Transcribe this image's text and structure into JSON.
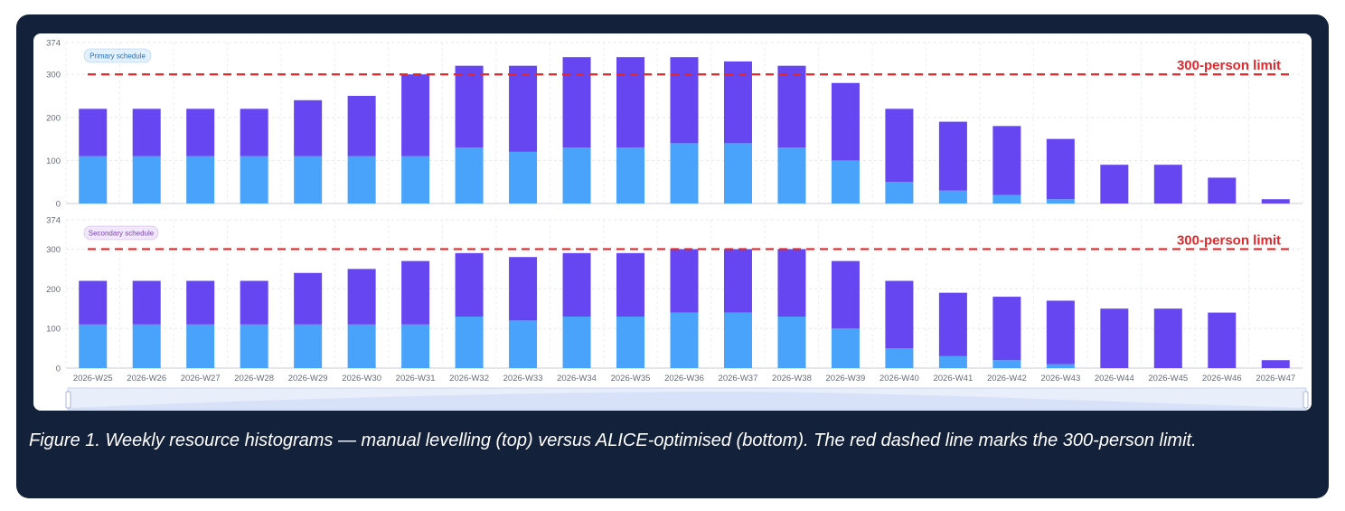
{
  "caption": "Figure 1. Weekly resource histograms — manual levelling (top) versus ALICE-optimised (bottom). The red dashed line marks the 300-person limit.",
  "colors": {
    "card_bg": "#13213a",
    "lower_segment": "#4aa3fa",
    "upper_segment": "#6546f0",
    "limit_line": "#e0292d",
    "primary_badge_bg": "#e3f1fd",
    "primary_badge_text": "#2a6fb8",
    "secondary_badge_bg": "#f1e8fb",
    "secondary_badge_text": "#7a45b5"
  },
  "chart_data": [
    {
      "type": "bar",
      "stacked": true,
      "badge": "Primary schedule",
      "categories": [
        "2026-W25",
        "2026-W26",
        "2026-W27",
        "2026-W28",
        "2026-W29",
        "2026-W30",
        "2026-W31",
        "2026-W32",
        "2026-W33",
        "2026-W34",
        "2026-W35",
        "2026-W36",
        "2026-W37",
        "2026-W38",
        "2026-W39",
        "2026-W40",
        "2026-W41",
        "2026-W42",
        "2026-W43",
        "2026-W44",
        "2026-W45",
        "2026-W46",
        "2026-W47"
      ],
      "series": [
        {
          "values": [
            110,
            110,
            110,
            110,
            110,
            110,
            110,
            130,
            120,
            130,
            130,
            140,
            140,
            130,
            100,
            50,
            30,
            20,
            10,
            0,
            0,
            0,
            0
          ]
        },
        {
          "values": [
            110,
            110,
            110,
            110,
            130,
            140,
            190,
            190,
            200,
            210,
            210,
            200,
            190,
            190,
            180,
            170,
            160,
            160,
            140,
            90,
            90,
            60,
            10
          ]
        }
      ],
      "ylim": [
        0,
        374
      ],
      "yticks": [
        0,
        100,
        200,
        300,
        374
      ],
      "grid": true,
      "reference_line": {
        "value": 300,
        "label": "300-person limit"
      }
    },
    {
      "type": "bar",
      "stacked": true,
      "badge": "Secondary schedule",
      "categories": [
        "2026-W25",
        "2026-W26",
        "2026-W27",
        "2026-W28",
        "2026-W29",
        "2026-W30",
        "2026-W31",
        "2026-W32",
        "2026-W33",
        "2026-W34",
        "2026-W35",
        "2026-W36",
        "2026-W37",
        "2026-W38",
        "2026-W39",
        "2026-W40",
        "2026-W41",
        "2026-W42",
        "2026-W43",
        "2026-W44",
        "2026-W45",
        "2026-W46",
        "2026-W47"
      ],
      "series": [
        {
          "values": [
            110,
            110,
            110,
            110,
            110,
            110,
            110,
            130,
            120,
            130,
            130,
            140,
            140,
            130,
            100,
            50,
            30,
            20,
            10,
            0,
            0,
            0,
            0
          ]
        },
        {
          "values": [
            110,
            110,
            110,
            110,
            130,
            140,
            160,
            160,
            160,
            160,
            160,
            160,
            160,
            170,
            170,
            170,
            160,
            160,
            160,
            150,
            150,
            140,
            20
          ]
        }
      ],
      "ylim": [
        0,
        374
      ],
      "yticks": [
        0,
        100,
        200,
        300,
        374
      ],
      "grid": true,
      "reference_line": {
        "value": 300,
        "label": "300-person limit"
      }
    }
  ]
}
